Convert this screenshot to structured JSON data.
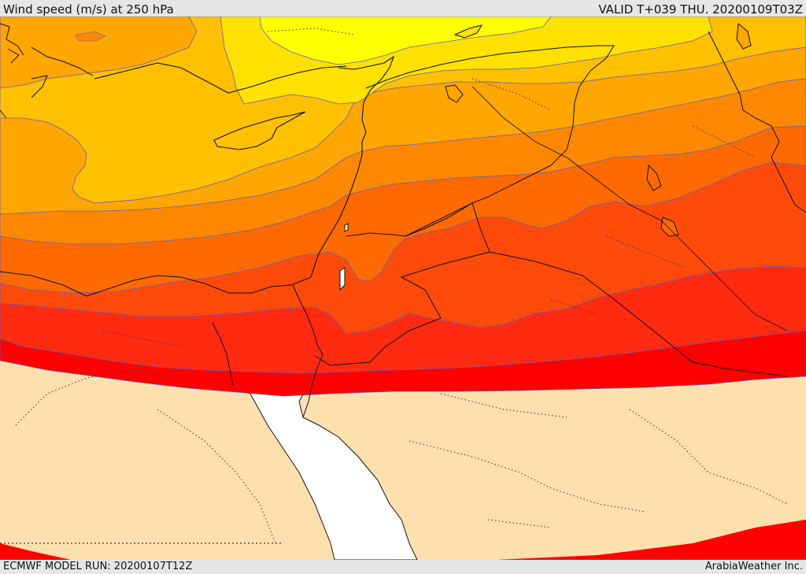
{
  "header": {
    "title": "Wind speed (m/s) at 250 hPa",
    "valid": "VALID T+039 THU. 20200109T03Z"
  },
  "footer": {
    "run": "ECMWF MODEL RUN: 20200107T12Z",
    "credit": "ArabiaWeather Inc."
  },
  "map": {
    "colors": {
      "land": "#fde0ad",
      "sea": "#ffffff",
      "band_yellow": "#ffff00",
      "band_gold": "#ffe100",
      "band_amber": "#ffc000",
      "band_orange_light": "#ffa600",
      "band_orange": "#ff8800",
      "band_orange_dark": "#ff6a00",
      "band_red_orange": "#ff4a0a",
      "band_red": "#ff2a10",
      "band_red_deep": "#ff0000",
      "contour": "#6060b8"
    }
  }
}
